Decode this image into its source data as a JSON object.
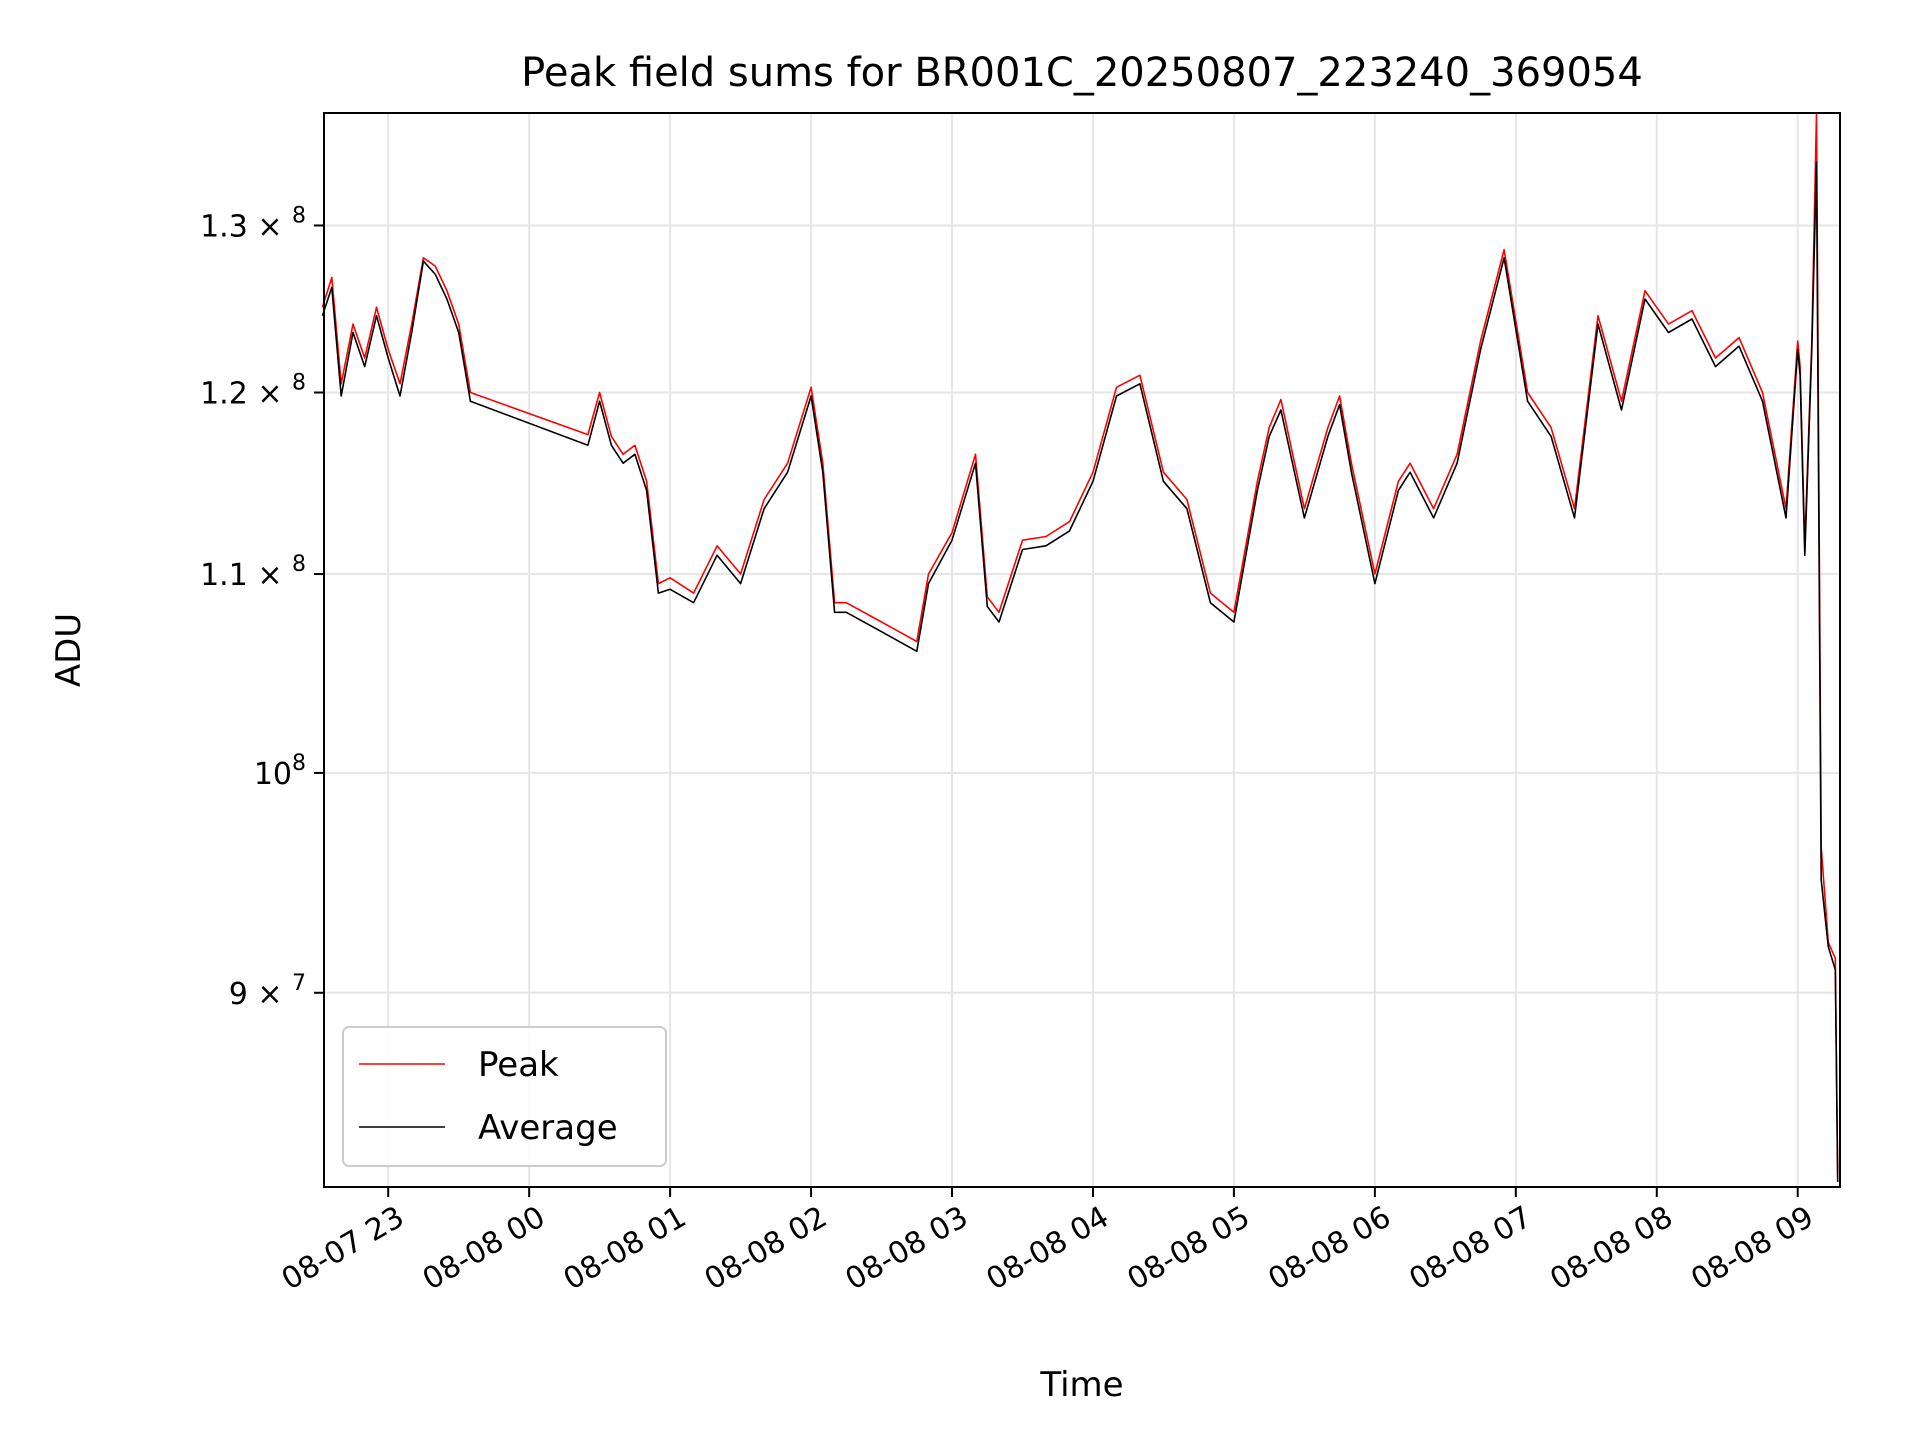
{
  "chart_data": {
    "type": "line",
    "title": "Peak field sums for BR001C_20250807_223240_369054",
    "xlabel": "Time",
    "ylabel": "ADU",
    "y_scale": "log",
    "ylim": [
      82000000,
      137200000
    ],
    "xlim": [
      "2025-08-07 22:32:40",
      "2025-08-08 09:18:00"
    ],
    "grid": true,
    "legend_position": "lower-left",
    "x_ticks": [
      {
        "value": "2025-08-07 23:00",
        "label": "08-07 23"
      },
      {
        "value": "2025-08-08 00:00",
        "label": "08-08 00"
      },
      {
        "value": "2025-08-08 01:00",
        "label": "08-08 01"
      },
      {
        "value": "2025-08-08 02:00",
        "label": "08-08 02"
      },
      {
        "value": "2025-08-08 03:00",
        "label": "08-08 03"
      },
      {
        "value": "2025-08-08 04:00",
        "label": "08-08 04"
      },
      {
        "value": "2025-08-08 05:00",
        "label": "08-08 05"
      },
      {
        "value": "2025-08-08 06:00",
        "label": "08-08 06"
      },
      {
        "value": "2025-08-08 07:00",
        "label": "08-08 07"
      },
      {
        "value": "2025-08-08 08:00",
        "label": "08-08 08"
      },
      {
        "value": "2025-08-08 09:00",
        "label": "08-08 09"
      }
    ],
    "y_ticks": [
      {
        "value": 90000000,
        "mant": "9",
        "times": true,
        "exp": "7"
      },
      {
        "value": 100000000,
        "mant": "10",
        "times": false,
        "exp": "8"
      },
      {
        "value": 110000000,
        "mant": "1.1",
        "times": true,
        "exp": "8"
      },
      {
        "value": 120000000,
        "mant": "1.2",
        "times": true,
        "exp": "8"
      },
      {
        "value": 130000000,
        "mant": "1.3",
        "times": true,
        "exp": "8"
      }
    ],
    "series": [
      {
        "name": "Peak",
        "color": "#ff0000",
        "x": [
          "2025-08-07 22:32",
          "2025-08-07 22:36",
          "2025-08-07 22:40",
          "2025-08-07 22:45",
          "2025-08-07 22:50",
          "2025-08-07 22:55",
          "2025-08-07 23:00",
          "2025-08-07 23:05",
          "2025-08-07 23:10",
          "2025-08-07 23:15",
          "2025-08-07 23:20",
          "2025-08-07 23:25",
          "2025-08-07 23:30",
          "2025-08-07 23:35",
          "2025-08-08 00:25",
          "2025-08-08 00:30",
          "2025-08-08 00:35",
          "2025-08-08 00:40",
          "2025-08-08 00:45",
          "2025-08-08 00:50",
          "2025-08-08 00:55",
          "2025-08-08 01:00",
          "2025-08-08 01:10",
          "2025-08-08 01:20",
          "2025-08-08 01:30",
          "2025-08-08 01:40",
          "2025-08-08 01:50",
          "2025-08-08 02:00",
          "2025-08-08 02:05",
          "2025-08-08 02:10",
          "2025-08-08 02:15",
          "2025-08-08 02:30",
          "2025-08-08 02:45",
          "2025-08-08 02:50",
          "2025-08-08 03:00",
          "2025-08-08 03:10",
          "2025-08-08 03:15",
          "2025-08-08 03:20",
          "2025-08-08 03:30",
          "2025-08-08 03:40",
          "2025-08-08 03:50",
          "2025-08-08 04:00",
          "2025-08-08 04:10",
          "2025-08-08 04:20",
          "2025-08-08 04:30",
          "2025-08-08 04:40",
          "2025-08-08 04:50",
          "2025-08-08 05:00",
          "2025-08-08 05:10",
          "2025-08-08 05:15",
          "2025-08-08 05:20",
          "2025-08-08 05:30",
          "2025-08-08 05:40",
          "2025-08-08 05:45",
          "2025-08-08 05:50",
          "2025-08-08 06:00",
          "2025-08-08 06:10",
          "2025-08-08 06:15",
          "2025-08-08 06:25",
          "2025-08-08 06:35",
          "2025-08-08 06:45",
          "2025-08-08 06:55",
          "2025-08-08 07:05",
          "2025-08-08 07:15",
          "2025-08-08 07:25",
          "2025-08-08 07:35",
          "2025-08-08 07:45",
          "2025-08-08 07:55",
          "2025-08-08 08:05",
          "2025-08-08 08:15",
          "2025-08-08 08:25",
          "2025-08-08 08:35",
          "2025-08-08 08:45",
          "2025-08-08 08:55",
          "2025-08-08 09:00",
          "2025-08-08 09:01",
          "2025-08-08 09:03",
          "2025-08-08 09:06",
          "2025-08-08 09:08",
          "2025-08-08 09:10",
          "2025-08-08 09:13",
          "2025-08-08 09:16",
          "2025-08-08 09:17"
        ],
        "y": [
          125000000,
          126800000,
          120500000,
          124000000,
          122000000,
          125000000,
          122500000,
          120500000,
          124000000,
          128000000,
          127500000,
          126000000,
          124000000,
          120000000,
          117600000,
          120000000,
          117500000,
          116500000,
          117000000,
          115000000,
          109500000,
          109800000,
          109000000,
          111500000,
          110000000,
          114000000,
          116000000,
          120300000,
          116000000,
          108500000,
          108500000,
          107500000,
          106500000,
          110000000,
          112200000,
          116500000,
          108800000,
          108000000,
          111800000,
          112000000,
          112800000,
          115500000,
          120300000,
          121000000,
          115500000,
          114000000,
          109000000,
          108000000,
          115000000,
          118000000,
          119600000,
          113500000,
          118000000,
          119800000,
          116000000,
          110000000,
          115000000,
          116000000,
          113500000,
          116500000,
          123000000,
          128500000,
          120000000,
          118000000,
          113500000,
          124500000,
          119500000,
          126000000,
          124000000,
          124800000,
          122000000,
          123200000,
          120000000,
          113500000,
          123000000,
          121500000,
          111500000,
          123000000,
          137200000,
          96500000,
          92200000,
          91500000,
          82500000
        ]
      },
      {
        "name": "Average",
        "color": "#000000",
        "x": [
          "2025-08-07 22:32",
          "2025-08-07 22:36",
          "2025-08-07 22:40",
          "2025-08-07 22:45",
          "2025-08-07 22:50",
          "2025-08-07 22:55",
          "2025-08-07 23:00",
          "2025-08-07 23:05",
          "2025-08-07 23:10",
          "2025-08-07 23:15",
          "2025-08-07 23:20",
          "2025-08-07 23:25",
          "2025-08-07 23:30",
          "2025-08-07 23:35",
          "2025-08-08 00:25",
          "2025-08-08 00:30",
          "2025-08-08 00:35",
          "2025-08-08 00:40",
          "2025-08-08 00:45",
          "2025-08-08 00:50",
          "2025-08-08 00:55",
          "2025-08-08 01:00",
          "2025-08-08 01:10",
          "2025-08-08 01:20",
          "2025-08-08 01:30",
          "2025-08-08 01:40",
          "2025-08-08 01:50",
          "2025-08-08 02:00",
          "2025-08-08 02:05",
          "2025-08-08 02:10",
          "2025-08-08 02:15",
          "2025-08-08 02:30",
          "2025-08-08 02:45",
          "2025-08-08 02:50",
          "2025-08-08 03:00",
          "2025-08-08 03:10",
          "2025-08-08 03:15",
          "2025-08-08 03:20",
          "2025-08-08 03:30",
          "2025-08-08 03:40",
          "2025-08-08 03:50",
          "2025-08-08 04:00",
          "2025-08-08 04:10",
          "2025-08-08 04:20",
          "2025-08-08 04:30",
          "2025-08-08 04:40",
          "2025-08-08 04:50",
          "2025-08-08 05:00",
          "2025-08-08 05:10",
          "2025-08-08 05:15",
          "2025-08-08 05:20",
          "2025-08-08 05:30",
          "2025-08-08 05:40",
          "2025-08-08 05:45",
          "2025-08-08 05:50",
          "2025-08-08 06:00",
          "2025-08-08 06:10",
          "2025-08-08 06:15",
          "2025-08-08 06:25",
          "2025-08-08 06:35",
          "2025-08-08 06:45",
          "2025-08-08 06:55",
          "2025-08-08 07:05",
          "2025-08-08 07:15",
          "2025-08-08 07:25",
          "2025-08-08 07:35",
          "2025-08-08 07:45",
          "2025-08-08 07:55",
          "2025-08-08 08:05",
          "2025-08-08 08:15",
          "2025-08-08 08:25",
          "2025-08-08 08:35",
          "2025-08-08 08:45",
          "2025-08-08 08:55",
          "2025-08-08 09:00",
          "2025-08-08 09:01",
          "2025-08-08 09:03",
          "2025-08-08 09:06",
          "2025-08-08 09:08",
          "2025-08-08 09:10",
          "2025-08-08 09:13",
          "2025-08-08 09:16",
          "2025-08-08 09:17"
        ],
        "y": [
          124500000,
          126200000,
          119800000,
          123500000,
          121500000,
          124500000,
          122000000,
          119800000,
          123500000,
          127800000,
          127000000,
          125500000,
          123500000,
          119500000,
          117000000,
          119500000,
          117000000,
          116000000,
          116500000,
          114500000,
          109000000,
          109200000,
          108500000,
          111000000,
          109500000,
          113500000,
          115500000,
          119800000,
          115500000,
          108000000,
          108000000,
          107000000,
          106000000,
          109500000,
          111800000,
          116000000,
          108300000,
          107500000,
          111300000,
          111500000,
          112300000,
          115000000,
          119800000,
          120500000,
          115000000,
          113500000,
          108500000,
          107500000,
          114500000,
          117500000,
          119000000,
          113000000,
          117500000,
          119300000,
          115500000,
          109500000,
          114500000,
          115500000,
          113000000,
          116000000,
          122500000,
          128000000,
          119500000,
          117500000,
          113000000,
          124000000,
          119000000,
          125500000,
          123500000,
          124300000,
          121500000,
          122700000,
          119500000,
          113000000,
          122500000,
          121000000,
          111000000,
          122500000,
          134000000,
          95000000,
          92000000,
          91000000,
          82200000
        ]
      }
    ]
  }
}
